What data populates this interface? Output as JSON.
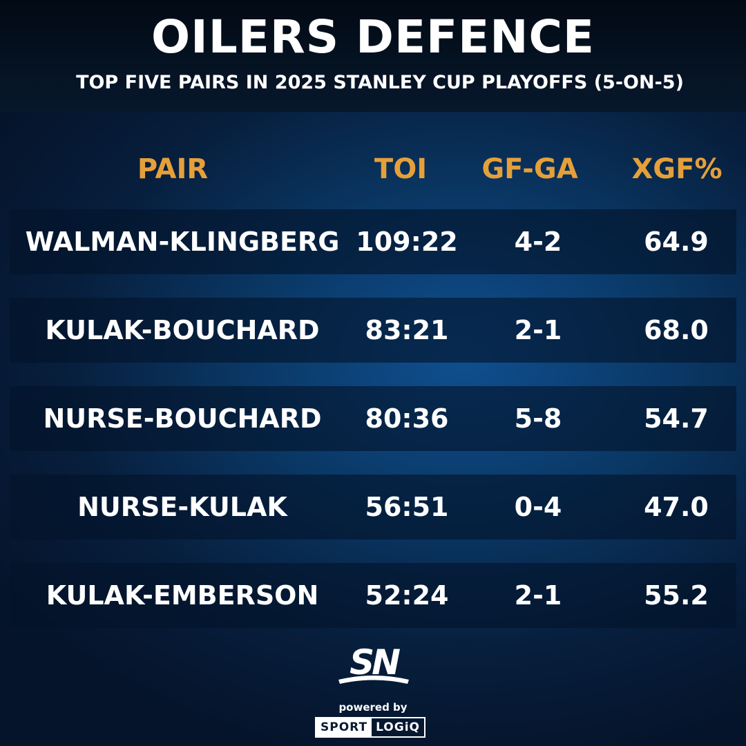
{
  "header": {
    "title": "OILERS DEFENCE",
    "subtitle": "TOP FIVE PAIRS IN 2025 STANLEY CUP PLAYOFFS (5-ON-5)"
  },
  "columns": [
    "PAIR",
    "TOI",
    "GF-GA",
    "XGF%"
  ],
  "rows": [
    {
      "pair": "WALMAN-KLINGBERG",
      "toi": "109:22",
      "gfga": "4-2",
      "xgf": "64.9"
    },
    {
      "pair": "KULAK-BOUCHARD",
      "toi": "83:21",
      "gfga": "2-1",
      "xgf": "68.0"
    },
    {
      "pair": "NURSE-BOUCHARD",
      "toi": "80:36",
      "gfga": "5-8",
      "xgf": "54.7"
    },
    {
      "pair": "NURSE-KULAK",
      "toi": "56:51",
      "gfga": "0-4",
      "xgf": "47.0"
    },
    {
      "pair": "KULAK-EMBERSON",
      "toi": "52:24",
      "gfga": "2-1",
      "xgf": "55.2"
    }
  ],
  "branding": {
    "sn_logo": "SN",
    "powered_by": "powered by",
    "sportlogiq_left": "SPORT",
    "sportlogiq_right": "LOGiQ"
  },
  "colors": {
    "accent_header": "#e5a03a",
    "background": "#0a3866"
  }
}
